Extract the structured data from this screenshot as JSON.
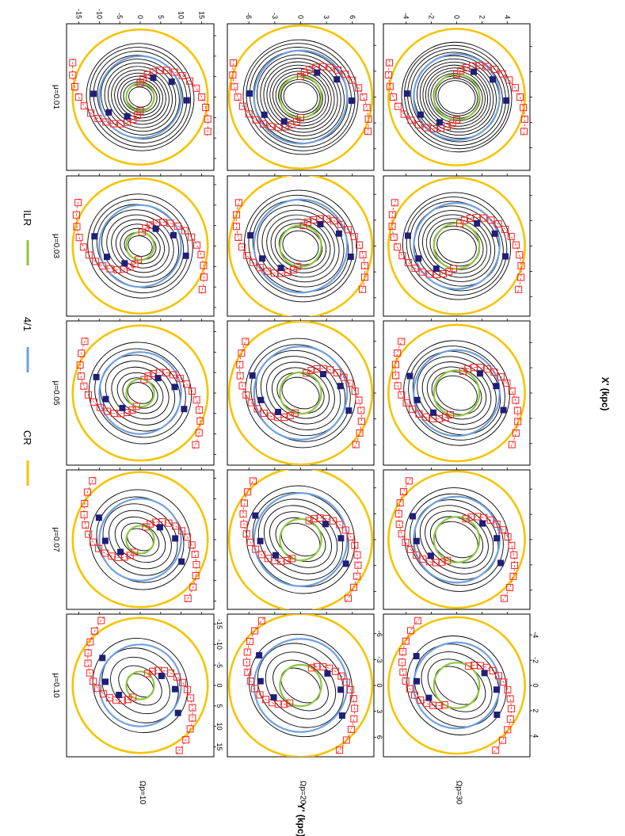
{
  "figure": {
    "legend": [
      {
        "label": "ILR",
        "color": "#8dc63f"
      },
      {
        "label": "4/1",
        "color": "#6fa0e0"
      },
      {
        "label": "CR",
        "color": "#f5c400"
      }
    ],
    "column_labels": [
      "μ=0.01",
      "μ=0.03",
      "μ=0.05",
      "μ=0.07",
      "μ=0.10"
    ],
    "row_labels": [
      "Ωp=10",
      "Ωp=20",
      "Ωp=30"
    ],
    "xlabel": "X' (kpc)",
    "ylabel": "Y' (kpc)",
    "rows": [
      {
        "x_ticks": [
          "-15",
          "-10",
          "-5",
          "0",
          "5",
          "10",
          "15"
        ],
        "x_range": [
          -18,
          18
        ],
        "y_ticks": [
          "15",
          "10",
          "5",
          "0",
          "-5",
          "-10",
          "-15"
        ],
        "y_range": [
          -18,
          18
        ]
      },
      {
        "x_ticks": [
          "-6",
          "-3",
          "0",
          "3",
          "6"
        ],
        "x_range": [
          -8.5,
          8.5
        ],
        "y_ticks": [
          "6",
          "3",
          "0",
          "-3",
          "-6"
        ],
        "y_range": [
          -8.5,
          8.5
        ]
      },
      {
        "x_ticks": [
          "-4",
          "-2",
          "0",
          "2",
          "4"
        ],
        "x_range": [
          -5.8,
          5.8
        ],
        "y_ticks": [
          "4",
          "2",
          "0",
          "-2",
          "-4"
        ],
        "y_range": [
          -5.8,
          5.8
        ]
      }
    ],
    "colors": {
      "ilr": "#8dc63f",
      "ultra": "#6fa0e0",
      "cr": "#f5c400",
      "spiral": "#ff2020",
      "marker": "#1f1f78",
      "orbit": "#000000"
    }
  },
  "chart_data": {
    "type": "grid-of-orbit-plots",
    "xlabel": "X' (kpc)",
    "ylabel": "Y' (kpc)",
    "series": [
      {
        "name": "ILR"
      },
      {
        "name": "4/1"
      },
      {
        "name": "CR"
      }
    ],
    "panels_rows": [
      "Ωp=10",
      "Ωp=20",
      "Ωp=30"
    ],
    "panels_cols": [
      "μ=0.01",
      "μ=0.03",
      "μ=0.05",
      "μ=0.07",
      "μ=0.10"
    ],
    "resonance_radii": [
      {
        "row": "Ωp=10",
        "ILR": 3.4,
        "4/1": 10.0,
        "CR": 16.5
      },
      {
        "row": "Ωp=20",
        "ILR": 2.4,
        "4/1": 5.4,
        "CR": 8.3
      },
      {
        "row": "Ωp=30",
        "ILR": 1.8,
        "4/1": 3.4,
        "CR": 5.4
      }
    ]
  }
}
